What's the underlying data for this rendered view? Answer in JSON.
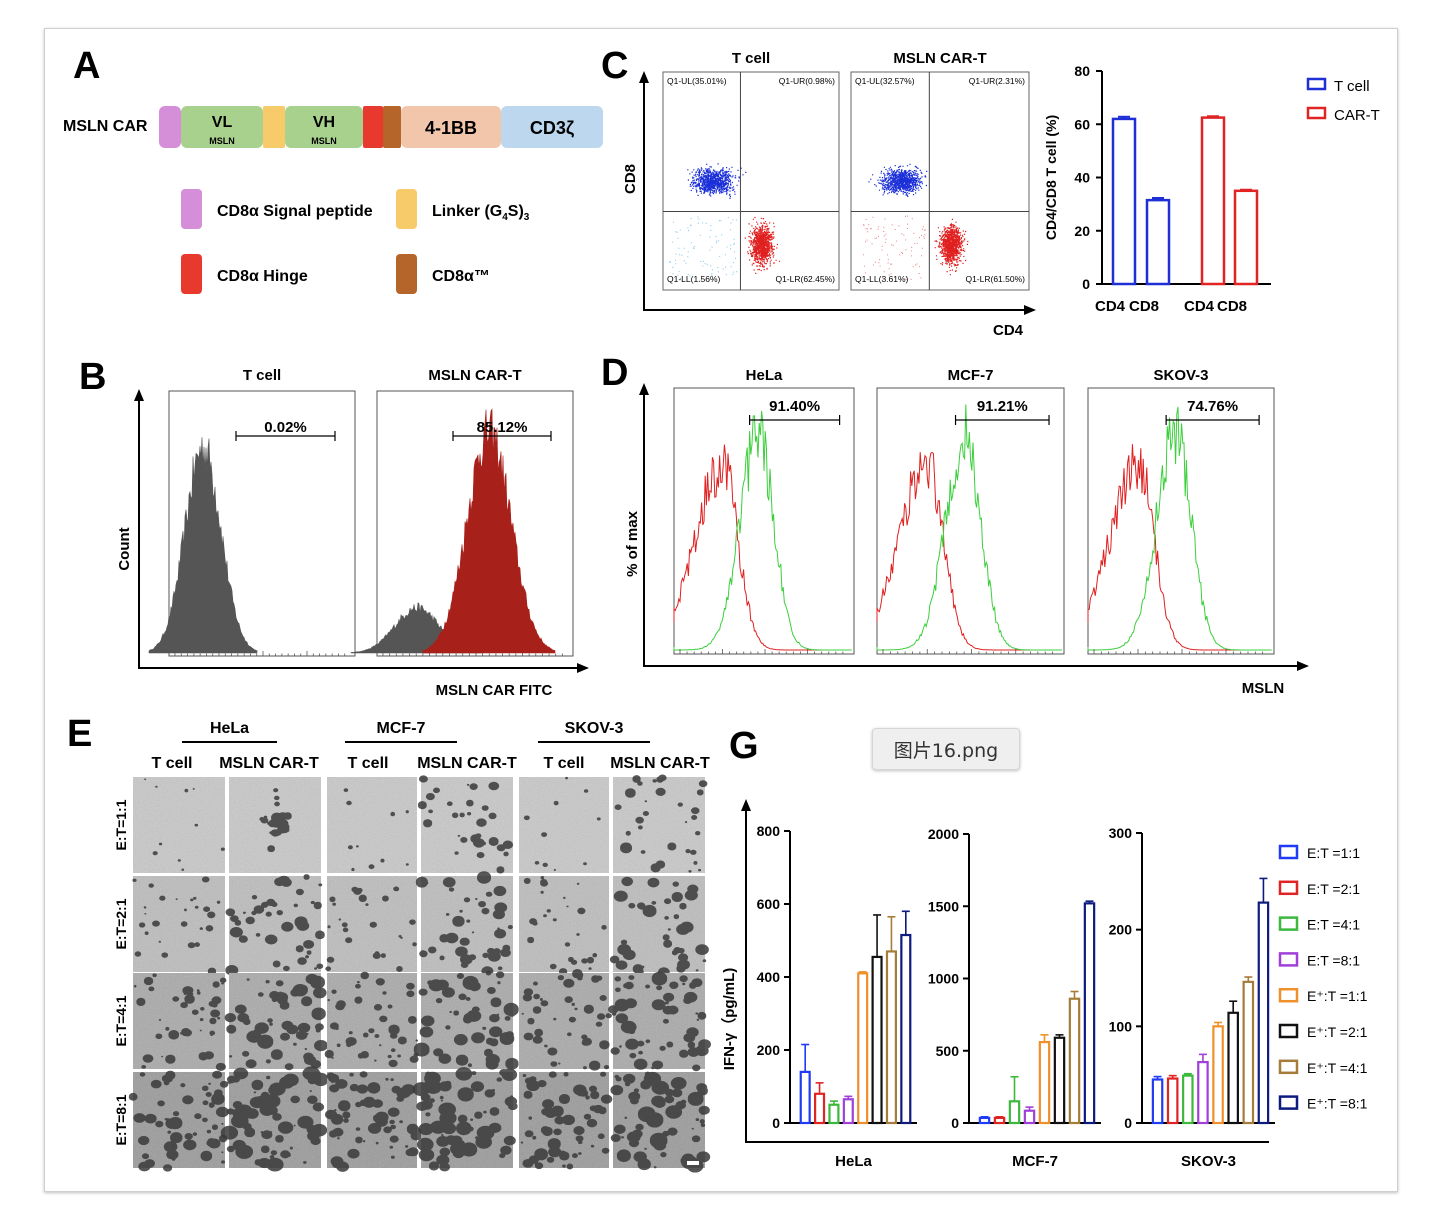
{
  "figure_filename": "图片16.png",
  "panels": {
    "A": {
      "letter": "A",
      "construct_label": "MSLN CAR",
      "segments": [
        {
          "label": "",
          "sub": "",
          "color": "#d48fd8"
        },
        {
          "label": "VL",
          "sub": "MSLN",
          "color": "#a9d18e"
        },
        {
          "label": "",
          "sub": "",
          "color": "#f8cb6a"
        },
        {
          "label": "VH",
          "sub": "MSLN",
          "color": "#a9d18e"
        },
        {
          "label": "",
          "sub": "",
          "color": "#e8392e"
        },
        {
          "label": "",
          "sub": "",
          "color": "#b5652a"
        },
        {
          "label": "4-1BB",
          "sub": "",
          "color": "#f2c6aa"
        },
        {
          "label": "CD3ζ",
          "sub": "",
          "color": "#bcd7ee"
        }
      ],
      "legend": [
        {
          "label": "CD8α Signal peptide",
          "color": "#d48fd8"
        },
        {
          "label": "Linker (G4S)3",
          "color": "#f8cb6a"
        },
        {
          "label": "CD8α Hinge",
          "color": "#e8392e"
        },
        {
          "label": "CD8α™",
          "color": "#b5652a"
        }
      ]
    },
    "B": {
      "letter": "B",
      "ylabel": "Count",
      "xlabel": "MSLN CAR FITC",
      "plots": [
        {
          "title": "T cell",
          "gate": "0.02%"
        },
        {
          "title": "MSLN CAR-T",
          "gate": "85.12%"
        }
      ]
    },
    "C": {
      "letter": "C",
      "xlabel": "CD4",
      "ylabel": "CD8",
      "plots": [
        {
          "title": "T cell",
          "q_ul": "Q1-UL(35.01%)",
          "q_ur": "Q1-UR(0.98%)",
          "q_ll": "Q1-LL(1.56%)",
          "q_lr": "Q1-LR(62.45%)"
        },
        {
          "title": "MSLN CAR-T",
          "q_ul": "Q1-UL(32.57%)",
          "q_ur": "Q1-UR(2.31%)",
          "q_ll": "Q1-LL(3.61%)",
          "q_lr": "Q1-LR(61.50%)"
        }
      ]
    },
    "D": {
      "letter": "D",
      "ylabel": "% of max",
      "xlabel": "MSLN",
      "plots": [
        {
          "title": "HeLa",
          "gate": "91.40%"
        },
        {
          "title": "MCF-7",
          "gate": "91.21%"
        },
        {
          "title": "SKOV-3",
          "gate": "74.76%"
        }
      ]
    },
    "E": {
      "letter": "E",
      "groups": [
        "HeLa",
        "MCF-7",
        "SKOV-3"
      ],
      "columns": [
        "T cell",
        "MSLN CAR-T",
        "T cell",
        "MSLN CAR-T",
        "T cell",
        "MSLN CAR-T"
      ],
      "rows": [
        "E:T=1:1",
        "E:T=2:1",
        "E:T=4:1",
        "E:T=8:1"
      ]
    },
    "G": {
      "letter": "G"
    }
  },
  "chart_data": [
    {
      "type": "bar",
      "panel": "C",
      "ylabel": "CD4/CD8 T cell (%)",
      "categories": [
        "CD4",
        "CD8"
      ],
      "ylim": [
        0,
        80
      ],
      "yticks": [
        0,
        20,
        40,
        60,
        80
      ],
      "legend_position": "top-right",
      "series": [
        {
          "name": "T cell",
          "color": "#1f2fd6",
          "values": [
            62,
            31.5
          ],
          "errors": [
            0.8,
            0.8
          ]
        },
        {
          "name": "CAR-T",
          "color": "#e02424",
          "values": [
            62.5,
            35
          ],
          "errors": [
            0.5,
            0.4
          ]
        }
      ]
    },
    {
      "type": "bar",
      "panel": "G",
      "ylabel": "IFN-γ（pg/mL)",
      "legend_position": "right",
      "series_names": [
        "E:T =1:1",
        "E:T =2:1",
        "E:T =4:1",
        "E:T =8:1",
        "E⁺:T =1:1",
        "E⁺:T =2:1",
        "E⁺:T =4:1",
        "E⁺:T =8:1"
      ],
      "series_colors": [
        "#1f3bf5",
        "#e02424",
        "#3cb83c",
        "#a040d8",
        "#f0902a",
        "#111111",
        "#a67c3a",
        "#0d1a80"
      ],
      "subplots": [
        {
          "xlabel": "HeLa",
          "ylim": [
            0,
            800
          ],
          "yticks": [
            0,
            200,
            400,
            600,
            800
          ],
          "values": [
            140,
            80,
            50,
            65,
            410,
            455,
            470,
            515
          ],
          "errors": [
            75,
            30,
            10,
            8,
            4,
            115,
            95,
            65
          ]
        },
        {
          "xlabel": "MCF-7",
          "ylim": [
            0,
            2000
          ],
          "yticks": [
            0,
            500,
            1000,
            1500,
            2000
          ],
          "values": [
            35,
            35,
            150,
            85,
            560,
            590,
            860,
            1520
          ],
          "errors": [
            8,
            8,
            170,
            25,
            50,
            20,
            50,
            15
          ]
        },
        {
          "xlabel": "SKOV-3",
          "ylim": [
            0,
            300
          ],
          "yticks": [
            0,
            100,
            200,
            300
          ],
          "values": [
            45,
            46,
            49,
            63,
            100,
            114,
            146,
            228
          ],
          "errors": [
            3,
            3,
            2,
            8,
            4,
            12,
            5,
            25
          ]
        }
      ]
    }
  ]
}
